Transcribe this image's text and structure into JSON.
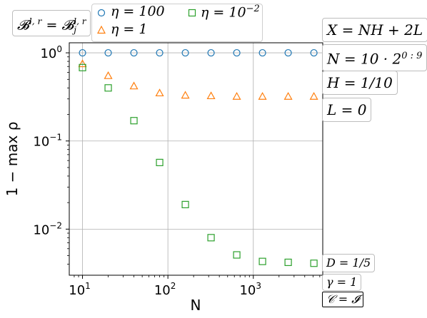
{
  "chart_data": {
    "type": "scatter",
    "xlabel": "N",
    "ylabel": "1 − max ρ",
    "xscale": "log",
    "yscale": "log",
    "xlim": [
      7,
      6500
    ],
    "ylim": [
      0.003,
      1.3
    ],
    "grid": true,
    "x_ticks": [
      10,
      100,
      1000
    ],
    "x_tick_labels": [
      "10",
      "10",
      "10"
    ],
    "x_tick_exps": [
      "1",
      "2",
      "3"
    ],
    "y_ticks": [
      1,
      0.1,
      0.01
    ],
    "y_tick_labels": [
      "10",
      "10",
      "10"
    ],
    "y_tick_exps": [
      "0",
      "−1",
      "−2"
    ],
    "x": [
      10,
      20,
      40,
      80,
      160,
      320,
      640,
      1280,
      2560,
      5120
    ],
    "series": [
      {
        "name": "η = 100",
        "marker": "circle",
        "color": "#1f77b4",
        "values": [
          1.0,
          1.0,
          1.0,
          1.0,
          1.0,
          1.0,
          1.0,
          1.0,
          1.0,
          1.0
        ]
      },
      {
        "name": "η = 1",
        "marker": "triangle",
        "color": "#ff7f0e",
        "values": [
          0.75,
          0.55,
          0.42,
          0.35,
          0.33,
          0.325,
          0.32,
          0.32,
          0.32,
          0.32
        ]
      },
      {
        "name": "η = 10",
        "name_exp": "−2",
        "marker": "square",
        "color": "#2ca02c",
        "values": [
          0.68,
          0.4,
          0.17,
          0.057,
          0.019,
          0.008,
          0.0051,
          0.0043,
          0.0042,
          0.0041
        ]
      }
    ]
  },
  "annotations": {
    "basis_lhs": "𝓑",
    "basis_lhs_sup": "l, r",
    "basis_eq": " = 𝓑",
    "basis_rhs_sup": "l, r",
    "basis_rhs_sub": "j",
    "x_formula": "X = NH + 2L",
    "n_formula_base": "N = 10 · 2",
    "n_formula_exp": "0 : 9",
    "h_formula": "H = 1/10",
    "l_formula": "L = 0",
    "d_formula": "D = 1/5",
    "gamma_formula": "γ = 1",
    "c_formula": "𝒞 = 𝓘"
  }
}
